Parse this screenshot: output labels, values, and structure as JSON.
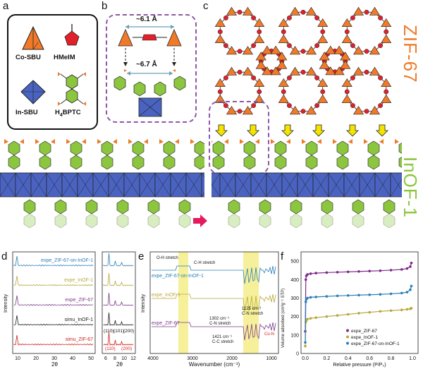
{
  "panels": {
    "a": "a",
    "b": "b",
    "c": "c",
    "d": "d",
    "e": "e",
    "f": "f"
  },
  "legend": {
    "co_sbu": "Co-SBU",
    "hmeim": "HMeIM",
    "in_sbu": "In-SBU",
    "h4bptc_main": "H",
    "h4bptc_sub": "4",
    "h4bptc_rest": "BPTC"
  },
  "panel_b": {
    "top_distance": "~6.1 Å",
    "bottom_distance": "~6.7 Å"
  },
  "labels": {
    "zif67": "ZIF-67",
    "inof1": "InOF-1"
  },
  "colors": {
    "co_orange": "#f07a2a",
    "hmeim_red": "#e0202a",
    "in_blue": "#4a63c0",
    "linker_green": "#8cc63f",
    "dash_purple": "#8e56a8",
    "arrow_yellow": "#f5e400",
    "arrow_red": "#e5195d"
  },
  "chart_data": [
    {
      "type": "line",
      "panel": "d",
      "xlabel": "2θ",
      "ylabel": "Intensity",
      "xticks_left": [
        "10",
        "20",
        "30",
        "40",
        "50"
      ],
      "xticks_right": [
        "6",
        "8",
        "10",
        "12"
      ],
      "series": [
        {
          "name": "expe_ZIF-67-on-InOF-1",
          "color": "#2a7fb8"
        },
        {
          "name": "expe_InOF-1",
          "color": "#b7a93a"
        },
        {
          "name": "expe_ZIF-67",
          "color": "#7d3a8a"
        },
        {
          "name": "simu_InOF-1",
          "color": "#222222"
        },
        {
          "name": "simu_ZIF-67",
          "color": "#d0201c"
        }
      ],
      "annotations_red": [
        "(110)",
        "(200)"
      ],
      "annotations_black": [
        "(110)",
        "(101)",
        "(200)"
      ]
    },
    {
      "type": "line",
      "panel": "e",
      "xlabel": "Wavenumber (cm⁻¹)",
      "ylabel": "Intensity",
      "xticks": [
        "4000",
        "3000",
        "2000",
        "1000"
      ],
      "series": [
        {
          "name": "expe_ZIF-67-on-InOF-1",
          "color": "#2a7fb8"
        },
        {
          "name": "expe_InOF-1",
          "color": "#b7a93a"
        },
        {
          "name": "expe_ZIF-67",
          "color": "#7d3a8a"
        }
      ],
      "annotations": [
        "O-H stretch",
        "C-H stretch",
        "1125 cm⁻¹",
        "C-N stretch",
        "1302 cm⁻¹",
        "C-N stretch",
        "1421 cm⁻¹",
        "C-C stretch",
        "Co-N"
      ]
    },
    {
      "type": "scatter",
      "panel": "f",
      "xlabel": "Relative pressure (P/P₀)",
      "ylabel": "Volume adsorbed (cm³g⁻¹ STP)",
      "xlim": [
        0,
        1
      ],
      "ylim": [
        0,
        550
      ],
      "xticks": [
        "0.0",
        "0.2",
        "0.4",
        "0.6",
        "0.8",
        "1.0"
      ],
      "yticks": [
        "0",
        "100",
        "200",
        "300",
        "400",
        "500"
      ],
      "series": [
        {
          "name": "expe_ZIF-67",
          "color": "#7d2a8a",
          "x": [
            0.0,
            0.005,
            0.01,
            0.02,
            0.05,
            0.1,
            0.2,
            0.3,
            0.4,
            0.5,
            0.6,
            0.7,
            0.8,
            0.9,
            0.95,
            0.98,
            0.99
          ],
          "y": [
            120,
            400,
            420,
            428,
            432,
            435,
            438,
            440,
            442,
            444,
            446,
            448,
            451,
            455,
            460,
            470,
            490
          ]
        },
        {
          "name": "expe_InOF-1",
          "color": "#b7a93a",
          "x": [
            0.0,
            0.005,
            0.01,
            0.02,
            0.05,
            0.1,
            0.2,
            0.3,
            0.4,
            0.5,
            0.6,
            0.7,
            0.8,
            0.9,
            0.95,
            0.98,
            0.99
          ],
          "y": [
            40,
            170,
            180,
            186,
            190,
            194,
            200,
            206,
            212,
            218,
            223,
            228,
            232,
            236,
            239,
            242,
            245
          ]
        },
        {
          "name": "expe_ZIF-67-on-InOF-1",
          "color": "#2a7fb8",
          "x": [
            0.0,
            0.005,
            0.01,
            0.02,
            0.05,
            0.1,
            0.2,
            0.3,
            0.4,
            0.5,
            0.6,
            0.7,
            0.8,
            0.9,
            0.95,
            0.98,
            0.99
          ],
          "y": [
            60,
            280,
            294,
            300,
            304,
            306,
            309,
            312,
            314,
            316,
            318,
            320,
            323,
            327,
            332,
            345,
            365
          ]
        }
      ]
    }
  ]
}
